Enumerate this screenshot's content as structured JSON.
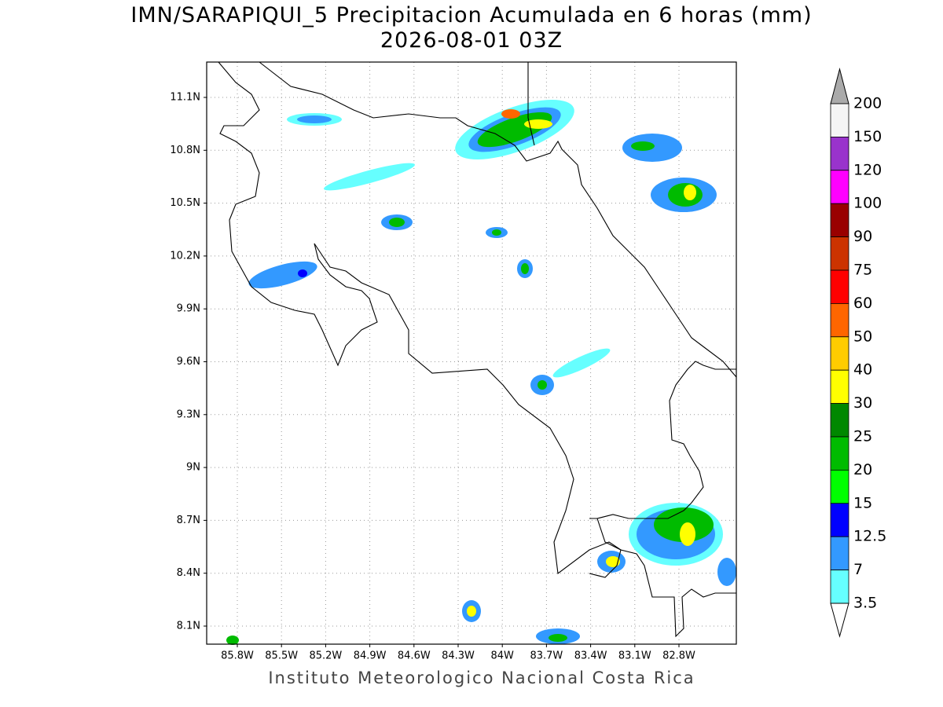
{
  "title": [
    "IMN/SARAPIQUI_5 Precipitacion Acumulada en 6 horas (mm)",
    "2026-08-01 03Z"
  ],
  "map": {
    "lat_labels": [
      "11.1N",
      "10.8N",
      "10.5N",
      "10.2N",
      "9.9N",
      "9.6N",
      "9.3N",
      "9N",
      "8.7N",
      "8.4N",
      "8.1N"
    ],
    "lon_labels": [
      "85.8W",
      "85.5W",
      "85.2W",
      "84.9W",
      "84.6W",
      "84.3W",
      "84W",
      "83.7W",
      "83.4W",
      "83.1W",
      "82.8W"
    ]
  },
  "colorbar": {
    "labels": [
      200,
      150,
      120,
      100,
      90,
      75,
      60,
      50,
      40,
      30,
      25,
      20,
      15,
      12.5,
      7,
      3.5
    ],
    "colors": [
      "#f5f5f5",
      "#9933cc",
      "#ff00ff",
      "#990000",
      "#cc3300",
      "#ff0000",
      "#ff6600",
      "#ffcc00",
      "#ffff00",
      "#008800",
      "#00bb00",
      "#00ff00",
      "#0000ff",
      "#3399ff",
      "#66ffff"
    ],
    "over_color": "#aaaaaa",
    "under_color": "#ffffff"
  },
  "footer": "Instituto Meteorologico Nacional Costa Rica"
}
